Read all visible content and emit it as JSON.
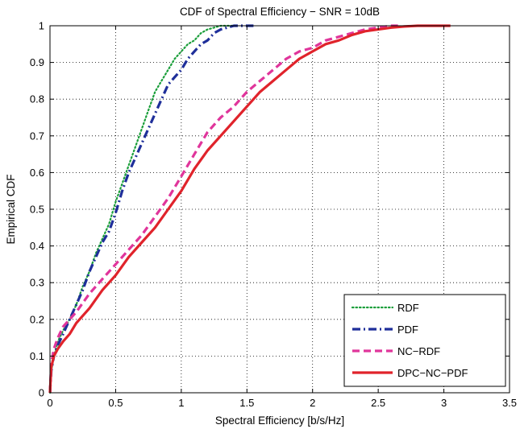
{
  "chart_data": {
    "type": "line",
    "title": "CDF of Spectral Efficiency − SNR = 10dB",
    "xlabel": "Spectral Efficiency [b/s/Hz]",
    "ylabel": "Empirical CDF",
    "xlim": [
      0,
      3.5
    ],
    "ylim": [
      0,
      1
    ],
    "xticks": [
      0,
      0.5,
      1,
      1.5,
      2,
      2.5,
      3,
      3.5
    ],
    "xtick_labels": [
      "0",
      "0.5",
      "1",
      "1.5",
      "2",
      "2.5",
      "3",
      "3.5"
    ],
    "yticks": [
      0,
      0.1,
      0.2,
      0.3,
      0.4,
      0.5,
      0.6,
      0.7,
      0.8,
      0.9,
      1
    ],
    "ytick_labels": [
      "0",
      "0.1",
      "0.2",
      "0.3",
      "0.4",
      "0.5",
      "0.6",
      "0.7",
      "0.8",
      "0.9",
      "1"
    ],
    "grid": true,
    "legend_position": "bottom-right",
    "series": [
      {
        "name": "RDF",
        "color": "#1a9e3a",
        "style": "dotted",
        "x": [
          0,
          0.01,
          0.03,
          0.06,
          0.1,
          0.15,
          0.2,
          0.25,
          0.3,
          0.35,
          0.4,
          0.45,
          0.5,
          0.55,
          0.6,
          0.65,
          0.7,
          0.75,
          0.8,
          0.85,
          0.9,
          0.95,
          1.0,
          1.05,
          1.1,
          1.15,
          1.2,
          1.25,
          1.3,
          1.35,
          1.4
        ],
        "y": [
          0,
          0.06,
          0.1,
          0.14,
          0.17,
          0.2,
          0.24,
          0.29,
          0.33,
          0.38,
          0.42,
          0.46,
          0.52,
          0.57,
          0.62,
          0.67,
          0.72,
          0.77,
          0.82,
          0.85,
          0.88,
          0.91,
          0.93,
          0.95,
          0.96,
          0.98,
          0.99,
          0.995,
          1.0,
          1.0,
          1.0
        ]
      },
      {
        "name": "PDF",
        "color": "#1f2f9a",
        "style": "dashdot",
        "x": [
          0,
          0.01,
          0.03,
          0.06,
          0.1,
          0.15,
          0.2,
          0.25,
          0.3,
          0.35,
          0.4,
          0.45,
          0.5,
          0.55,
          0.6,
          0.65,
          0.7,
          0.75,
          0.8,
          0.85,
          0.9,
          0.95,
          1.0,
          1.05,
          1.1,
          1.15,
          1.2,
          1.25,
          1.3,
          1.35,
          1.4,
          1.5,
          1.55
        ],
        "y": [
          0,
          0.06,
          0.1,
          0.13,
          0.16,
          0.2,
          0.24,
          0.28,
          0.33,
          0.37,
          0.41,
          0.44,
          0.49,
          0.55,
          0.6,
          0.64,
          0.68,
          0.72,
          0.76,
          0.8,
          0.84,
          0.86,
          0.88,
          0.91,
          0.93,
          0.95,
          0.96,
          0.98,
          0.99,
          0.995,
          1.0,
          1.0,
          1.0
        ]
      },
      {
        "name": "NC−RDF",
        "color": "#e0359b",
        "style": "dashed",
        "x": [
          0,
          0.01,
          0.03,
          0.06,
          0.1,
          0.15,
          0.2,
          0.3,
          0.4,
          0.5,
          0.6,
          0.7,
          0.8,
          0.9,
          1.0,
          1.1,
          1.2,
          1.3,
          1.4,
          1.5,
          1.6,
          1.7,
          1.8,
          1.9,
          2.0,
          2.1,
          2.2,
          2.3,
          2.4,
          2.5,
          2.6,
          2.65
        ],
        "y": [
          0,
          0.08,
          0.12,
          0.15,
          0.18,
          0.2,
          0.22,
          0.27,
          0.31,
          0.35,
          0.39,
          0.43,
          0.48,
          0.53,
          0.59,
          0.65,
          0.71,
          0.75,
          0.78,
          0.82,
          0.85,
          0.88,
          0.91,
          0.93,
          0.94,
          0.96,
          0.97,
          0.98,
          0.99,
          0.995,
          1.0,
          1.0
        ]
      },
      {
        "name": "DPC−NC−PDF",
        "color": "#e0232b",
        "style": "solid",
        "x": [
          0,
          0.01,
          0.03,
          0.06,
          0.1,
          0.15,
          0.2,
          0.3,
          0.4,
          0.5,
          0.6,
          0.7,
          0.8,
          0.9,
          1.0,
          1.1,
          1.2,
          1.3,
          1.4,
          1.5,
          1.6,
          1.7,
          1.8,
          1.9,
          2.0,
          2.1,
          2.2,
          2.3,
          2.4,
          2.5,
          2.6,
          2.7,
          2.8,
          3.0,
          3.05
        ],
        "y": [
          0,
          0.07,
          0.1,
          0.12,
          0.14,
          0.16,
          0.19,
          0.23,
          0.28,
          0.32,
          0.37,
          0.41,
          0.45,
          0.5,
          0.55,
          0.61,
          0.66,
          0.7,
          0.74,
          0.78,
          0.82,
          0.85,
          0.88,
          0.91,
          0.93,
          0.95,
          0.96,
          0.975,
          0.985,
          0.99,
          0.995,
          0.998,
          1.0,
          1.0,
          1.0
        ]
      }
    ]
  }
}
